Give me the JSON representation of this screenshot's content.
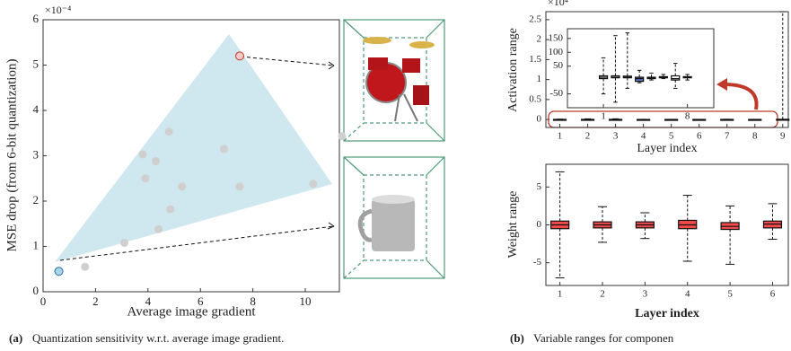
{
  "chart_data": [
    {
      "type": "scatter",
      "x_label": "Average image gradient",
      "y_label": "MSE drop (from 6-bit quantization)",
      "y_exponent": "×10⁻⁴",
      "xlim": [
        0,
        11.3
      ],
      "ylim": [
        0,
        6
      ],
      "xticks": [
        0,
        2,
        4,
        6,
        8,
        10
      ],
      "yticks": [
        0,
        1,
        2,
        3,
        4,
        5,
        6
      ],
      "x": [
        0.6,
        1.6,
        3.1,
        3.8,
        3.9,
        4.3,
        4.4,
        4.8,
        4.85,
        5.3,
        6.9,
        7.5,
        7.5,
        10.3,
        11.4
      ],
      "values": [
        0.45,
        0.55,
        1.08,
        3.03,
        2.5,
        2.88,
        1.38,
        3.53,
        1.82,
        2.32,
        3.15,
        2.32,
        5.2,
        2.38,
        3.43
      ],
      "colors": [
        "#a9d4ea",
        "#cfcfcf",
        "#cfcfcf",
        "#cfcfcf",
        "#cfcfcf",
        "#cfcfcf",
        "#cfcfcf",
        "#cfcfcf",
        "#cfcfcf",
        "#cfcfcf",
        "#cfcfcf",
        "#cfcfcf",
        "#f2c9c9",
        "#cfcfcf",
        "#cfcfcf"
      ]
    },
    {
      "type": "box",
      "x_label": "Layer index",
      "y_label": "Activation range",
      "y_exponent": "×10⁴",
      "xlim": [
        0.5,
        9.2
      ],
      "ylim": [
        -0.2,
        2.7
      ],
      "xticks": [
        1,
        2,
        3,
        4,
        5,
        6,
        7,
        8,
        9
      ],
      "yticks": [
        0,
        0.5,
        1,
        1.5,
        2,
        2.5
      ],
      "x": [
        1,
        2,
        3,
        4,
        5,
        6,
        7,
        8,
        9
      ],
      "min": [
        -0.005,
        -0.008,
        -0.003,
        -0.001,
        0,
        0,
        -0.003,
        0,
        0
      ],
      "q1": [
        0,
        0,
        0,
        0,
        0,
        0,
        0,
        0,
        0
      ],
      "median": [
        0.001,
        0.001,
        0.001,
        0,
        0.001,
        0.001,
        0,
        0.001,
        0.002
      ],
      "q3": [
        0.002,
        0.002,
        0.002,
        0.001,
        0.001,
        0.001,
        0.002,
        0.001,
        0.004
      ],
      "max": [
        0.008,
        0.016,
        0.017,
        0.004,
        0.003,
        0.002,
        0.006,
        0.002,
        2.7
      ],
      "box_colors": [
        "#ffffff",
        "#ffffff",
        "#ffffff",
        "#ffffff",
        "#ffffff",
        "#ffffff",
        "#ffffff",
        "#ffffff",
        "#ffffff"
      ]
    },
    {
      "type": "box",
      "xlim": [
        -2,
        10.2
      ],
      "ylim": [
        -100,
        185
      ],
      "xticks": [
        1,
        8
      ],
      "yticks": [
        -50,
        50,
        100,
        150
      ],
      "x": [
        1,
        2,
        3,
        4,
        5,
        6,
        7,
        8
      ],
      "min": [
        -50,
        -80,
        -30,
        -10,
        0,
        5,
        -30,
        0
      ],
      "q1": [
        5,
        8,
        8,
        -5,
        5,
        8,
        0,
        8
      ],
      "median": [
        10,
        10,
        10,
        5,
        8,
        10,
        5,
        10
      ],
      "q3": [
        15,
        15,
        14,
        10,
        10,
        12,
        15,
        12
      ],
      "max": [
        80,
        160,
        170,
        35,
        25,
        20,
        60,
        20
      ],
      "box_colors": [
        "#ffffff",
        "#ffffff",
        "#ffffff",
        "#5b73c9",
        "#ffffff",
        "#ffffff",
        "#ffffff",
        "#ffffff"
      ]
    },
    {
      "type": "box",
      "x_label": "Layer index",
      "y_label": "Weight range",
      "xlim": [
        0.67,
        6.37
      ],
      "ylim": [
        -8,
        8
      ],
      "xticks": [
        1,
        2,
        3,
        4,
        5,
        6
      ],
      "yticks": [
        -5,
        0,
        5
      ],
      "x": [
        1,
        2,
        3,
        4,
        5,
        6
      ],
      "min": [
        -7,
        -2.3,
        -1.8,
        -4.8,
        -5.2,
        -1.9
      ],
      "q1": [
        -0.5,
        -0.4,
        -0.4,
        -0.5,
        -0.6,
        -0.4
      ],
      "median": [
        0,
        0,
        0,
        0,
        -0.2,
        0.1
      ],
      "q3": [
        0.5,
        0.4,
        0.4,
        0.6,
        0.3,
        0.5
      ],
      "max": [
        7,
        2.4,
        1.6,
        3.9,
        2.5,
        2.8
      ],
      "box_colors": [
        "#f24a4a",
        "#f24a4a",
        "#f24a4a",
        "#f24a4a",
        "#f24a4a",
        "#f24a4a"
      ]
    }
  ],
  "captions": [
    {
      "label": "(a)",
      "text": "Quantization sensitivity w.r.t. average image gradient."
    },
    {
      "label": "(b)",
      "text": "Variable ranges for componen"
    }
  ]
}
